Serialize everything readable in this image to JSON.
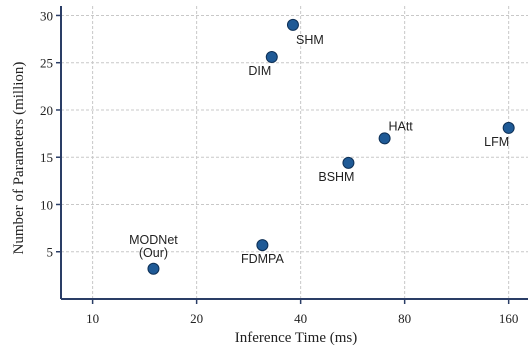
{
  "chart_data": {
    "type": "scatter",
    "xlabel": "Inference Time (ms)",
    "ylabel": "Number of  Parameters (million)",
    "x_ticks": [
      "10",
      "20",
      "40",
      "80",
      "160"
    ],
    "y_ticks": [
      "5",
      "10",
      "15",
      "20",
      "25",
      "30"
    ],
    "x_scale": "log2",
    "xlim": [
      8.1,
      182
    ],
    "ylim": [
      0,
      31
    ],
    "grid": true,
    "marker_color": "#1f5a96",
    "points": [
      {
        "name": "MODNet\n(Our)",
        "x": 15,
        "y": 3.2,
        "label_pos": "above"
      },
      {
        "name": "FDMPA",
        "x": 31,
        "y": 5.7,
        "label_pos": "below"
      },
      {
        "name": "DIM",
        "x": 33,
        "y": 25.6,
        "label_pos": "below-left"
      },
      {
        "name": "SHM",
        "x": 38,
        "y": 29.0,
        "label_pos": "below-right"
      },
      {
        "name": "BSHM",
        "x": 55,
        "y": 14.4,
        "label_pos": "below-left"
      },
      {
        "name": "HAtt",
        "x": 70,
        "y": 17.0,
        "label_pos": "above-right"
      },
      {
        "name": "LFM",
        "x": 160,
        "y": 18.1,
        "label_pos": "below-left"
      }
    ]
  }
}
